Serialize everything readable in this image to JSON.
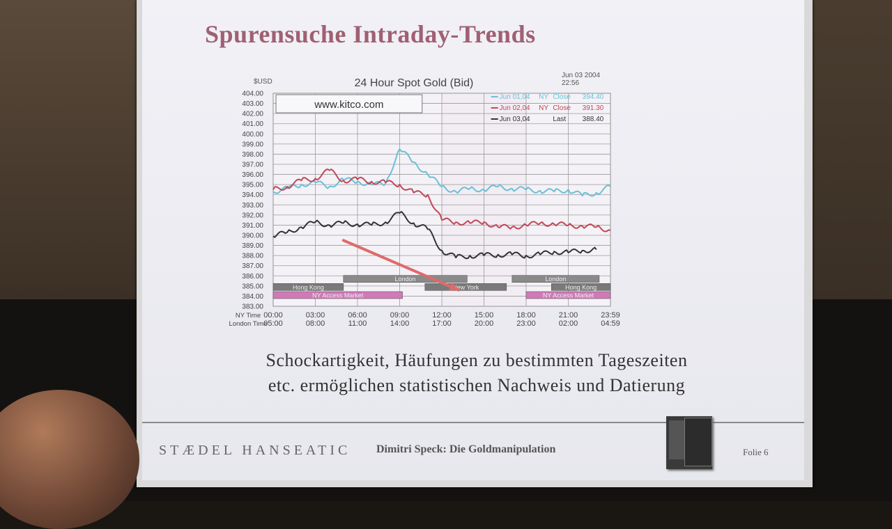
{
  "slide": {
    "title": "Spurensuche Intraday-Trends",
    "caption_line1": "Schockartigkeit, Häufungen zu bestimmten Tageszeiten",
    "caption_line2": "etc. ermöglichen statistischen Nachweis und Datierung",
    "footer_brand": "STÆDEL HANSEATIC",
    "footer_author": "Dimitri Speck: Die Goldmanipulation",
    "footer_slide_number": "Folie 6"
  },
  "chart_data": {
    "type": "line",
    "title": "24 Hour Spot Gold (Bid)",
    "ylabel": "$USD",
    "date_label": "Jun 03 2004",
    "time_label": "22:56",
    "watermark": "www.kitco.com",
    "ylim": [
      383.0,
      404.0
    ],
    "yticks": [
      "404.00",
      "403.00",
      "402.00",
      "401.00",
      "400.00",
      "399.00",
      "398.00",
      "397.00",
      "396.00",
      "395.00",
      "394.00",
      "393.00",
      "392.00",
      "391.00",
      "390.00",
      "389.00",
      "388.00",
      "387.00",
      "386.00",
      "385.00",
      "384.00",
      "383.00"
    ],
    "xaxis_row_labels": [
      "NY Time",
      "London Time"
    ],
    "x_ny": [
      "00:00",
      "03:00",
      "06:00",
      "09:00",
      "12:00",
      "15:00",
      "18:00",
      "21:00",
      "23:59"
    ],
    "x_london": [
      "05:00",
      "08:00",
      "11:00",
      "14:00",
      "17:00",
      "20:00",
      "23:00",
      "02:00",
      "04:59"
    ],
    "legend": [
      {
        "date": "Jun 01,04",
        "kind": "NY",
        "status": "Close",
        "value": "394.40",
        "color": "#6ac0d8"
      },
      {
        "date": "Jun 02,04",
        "kind": "NY",
        "status": "Close",
        "value": "391.30",
        "color": "#c04858"
      },
      {
        "date": "Jun 03,04",
        "kind": "",
        "status": "Last",
        "value": "388.40",
        "color": "#333333"
      }
    ],
    "x": [
      0,
      1,
      2,
      3,
      4,
      5,
      6,
      7,
      8,
      9,
      10,
      11,
      12,
      13,
      14,
      15,
      16,
      17,
      18,
      19,
      20,
      21,
      22,
      23,
      24
    ],
    "series": [
      {
        "name": "Jun 01,04",
        "color": "#6ac0d8",
        "values": [
          394.3,
          394.6,
          395.0,
          395.2,
          394.8,
          395.5,
          395.3,
          395.0,
          395.1,
          398.5,
          397.2,
          396.0,
          394.8,
          394.3,
          394.6,
          394.5,
          394.8,
          394.6,
          394.5,
          394.4,
          394.3,
          394.5,
          393.9,
          394.2,
          394.8
        ]
      },
      {
        "name": "Jun 02,04",
        "color": "#c04858",
        "values": [
          394.5,
          394.8,
          395.4,
          395.6,
          396.4,
          395.4,
          395.5,
          395.3,
          395.2,
          395.0,
          394.2,
          394.0,
          391.5,
          391.3,
          391.2,
          391.3,
          390.8,
          390.8,
          391.0,
          391.2,
          391.1,
          391.0,
          390.9,
          390.8,
          390.5
        ]
      },
      {
        "name": "Jun 03,04",
        "color": "#333333",
        "values": [
          389.9,
          390.3,
          390.8,
          391.3,
          391.0,
          391.2,
          391.1,
          391.0,
          391.3,
          392.2,
          391.2,
          390.6,
          388.5,
          387.8,
          388.0,
          388.0,
          388.1,
          388.1,
          388.0,
          388.1,
          388.4,
          388.3,
          388.5,
          388.6,
          null
        ]
      }
    ],
    "session_bars": {
      "top_row": [
        {
          "label": "London",
          "start": 5.0,
          "end": 13.8
        },
        {
          "label": "London",
          "start": 17.0,
          "end": 23.2
        }
      ],
      "middle_row": [
        {
          "label": "Hong Kong",
          "start": 0.0,
          "end": 5.0
        },
        {
          "label": "New York",
          "start": 10.8,
          "end": 16.6
        },
        {
          "label": "Hong Kong",
          "start": 19.8,
          "end": 24.0
        }
      ],
      "bottom_row": [
        {
          "label": "NY Access Market",
          "start": 0.0,
          "end": 9.2
        },
        {
          "label": "NY Access Market",
          "start": 18.0,
          "end": 24.0
        }
      ]
    },
    "annotation_arrow": {
      "from": [
        5.0,
        389.5
      ],
      "to": [
        13.2,
        384.6
      ],
      "color": "#e06a6a"
    },
    "grid": true
  }
}
